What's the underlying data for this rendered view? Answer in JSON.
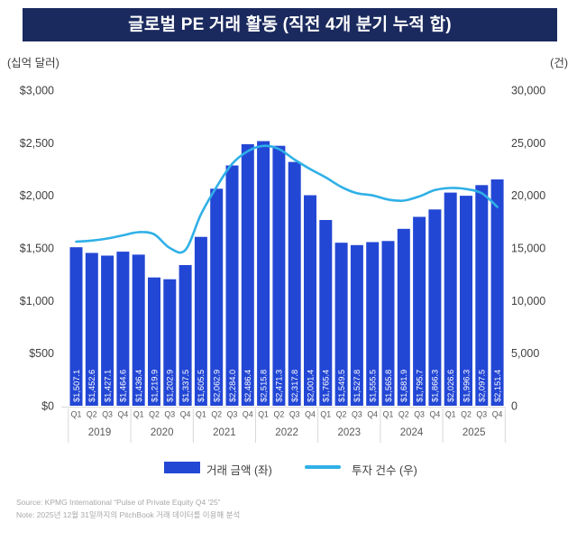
{
  "title": "글로벌 PE 거래 활동 (직전 4개 분기 누적 합)",
  "left_axis_unit": "(십억 달러)",
  "right_axis_unit": "(건)",
  "legend": {
    "bars_label": "거래 금액 (좌)",
    "line_label": "투자 건수 (우)"
  },
  "source_line1": "Source: KPMG International “Pulse of Private Equity Q4 '25”",
  "source_line2": "Note: 2025년 12월 31일까지의 PitchBook 거래 데이터를 이용해 분석",
  "colors": {
    "bar": "#2347d5",
    "line": "#2fb0e6",
    "title_bg": "#1b2a5e",
    "axis_text": "#3f3f3f",
    "xaxis_text": "#595959",
    "source_text": "#a8a8a8",
    "separator": "#d9d9d9"
  },
  "chart_data": {
    "type": "bar+line",
    "title": "글로벌 PE 거래 활동 (직전 4개 분기 누적 합)",
    "years": [
      "2019",
      "2020",
      "2021",
      "2022",
      "2023",
      "2024",
      "2025"
    ],
    "quarters": [
      "Q1",
      "Q2",
      "Q3",
      "Q4"
    ],
    "categories": [
      "2019 Q1",
      "2019 Q2",
      "2019 Q3",
      "2019 Q4",
      "2020 Q1",
      "2020 Q2",
      "2020 Q3",
      "2020 Q4",
      "2021 Q1",
      "2021 Q2",
      "2021 Q3",
      "2021 Q4",
      "2022 Q1",
      "2022 Q2",
      "2022 Q3",
      "2022 Q4",
      "2023 Q1",
      "2023 Q2",
      "2023 Q3",
      "2023 Q4",
      "2024 Q1",
      "2024 Q2",
      "2024 Q3",
      "2024 Q4",
      "2025 Q1",
      "2025 Q2",
      "2025 Q3",
      "2025 Q4"
    ],
    "bar_series": {
      "name": "거래 금액 (좌)",
      "axis": "left",
      "unit": "십억 달러",
      "values": [
        1507.1,
        1452.6,
        1427.1,
        1464.6,
        1436.4,
        1219.9,
        1202.9,
        1337.5,
        1605.5,
        2062.9,
        2284.0,
        2486.4,
        2515.8,
        2471.3,
        2317.8,
        2001.4,
        1765.4,
        1549.5,
        1527.8,
        1555.5,
        1565.8,
        1681.9,
        1795.7,
        1866.3,
        2026.6,
        1996.3,
        2097.5,
        2151.4
      ],
      "labels": [
        "$1,507.1",
        "$1,452.6",
        "$1,427.1",
        "$1,464.6",
        "$1,436.4",
        "$1,219.9",
        "$1,202.9",
        "$1,337.5",
        "$1,605.5",
        "$2,062.9",
        "$2,284.0",
        "$2,486.4",
        "$2,515.8",
        "$2,471.3",
        "$2,317.8",
        "$2,001.4",
        "$1,765.4",
        "$1,549.5",
        "$1,527.8",
        "$1,555.5",
        "$1,565.8",
        "$1,681.9",
        "$1,795.7",
        "$1,866.3",
        "$2,026.6",
        "$1,996.3",
        "$2,097.5",
        "$2,151.4"
      ]
    },
    "line_series": {
      "name": "투자 건수 (우)",
      "axis": "right",
      "unit": "건",
      "values": [
        15600,
        15700,
        15900,
        16200,
        16500,
        16300,
        15000,
        14800,
        18200,
        20800,
        23000,
        24200,
        24700,
        24400,
        23400,
        22500,
        21700,
        20800,
        20200,
        20000,
        19600,
        19500,
        19900,
        20500,
        20700,
        20600,
        20200,
        18900
      ]
    },
    "left_axis": {
      "min": 0,
      "max": 3000,
      "ticks": [
        "$0",
        "$500",
        "$1,000",
        "$1,500",
        "$2,000",
        "$2,500",
        "$3,000"
      ]
    },
    "right_axis": {
      "min": 0,
      "max": 30000,
      "ticks": [
        "0",
        "5,000",
        "10,000",
        "15,000",
        "20,000",
        "25,000",
        "30,000"
      ]
    },
    "grid": false,
    "legend_position": "bottom"
  }
}
